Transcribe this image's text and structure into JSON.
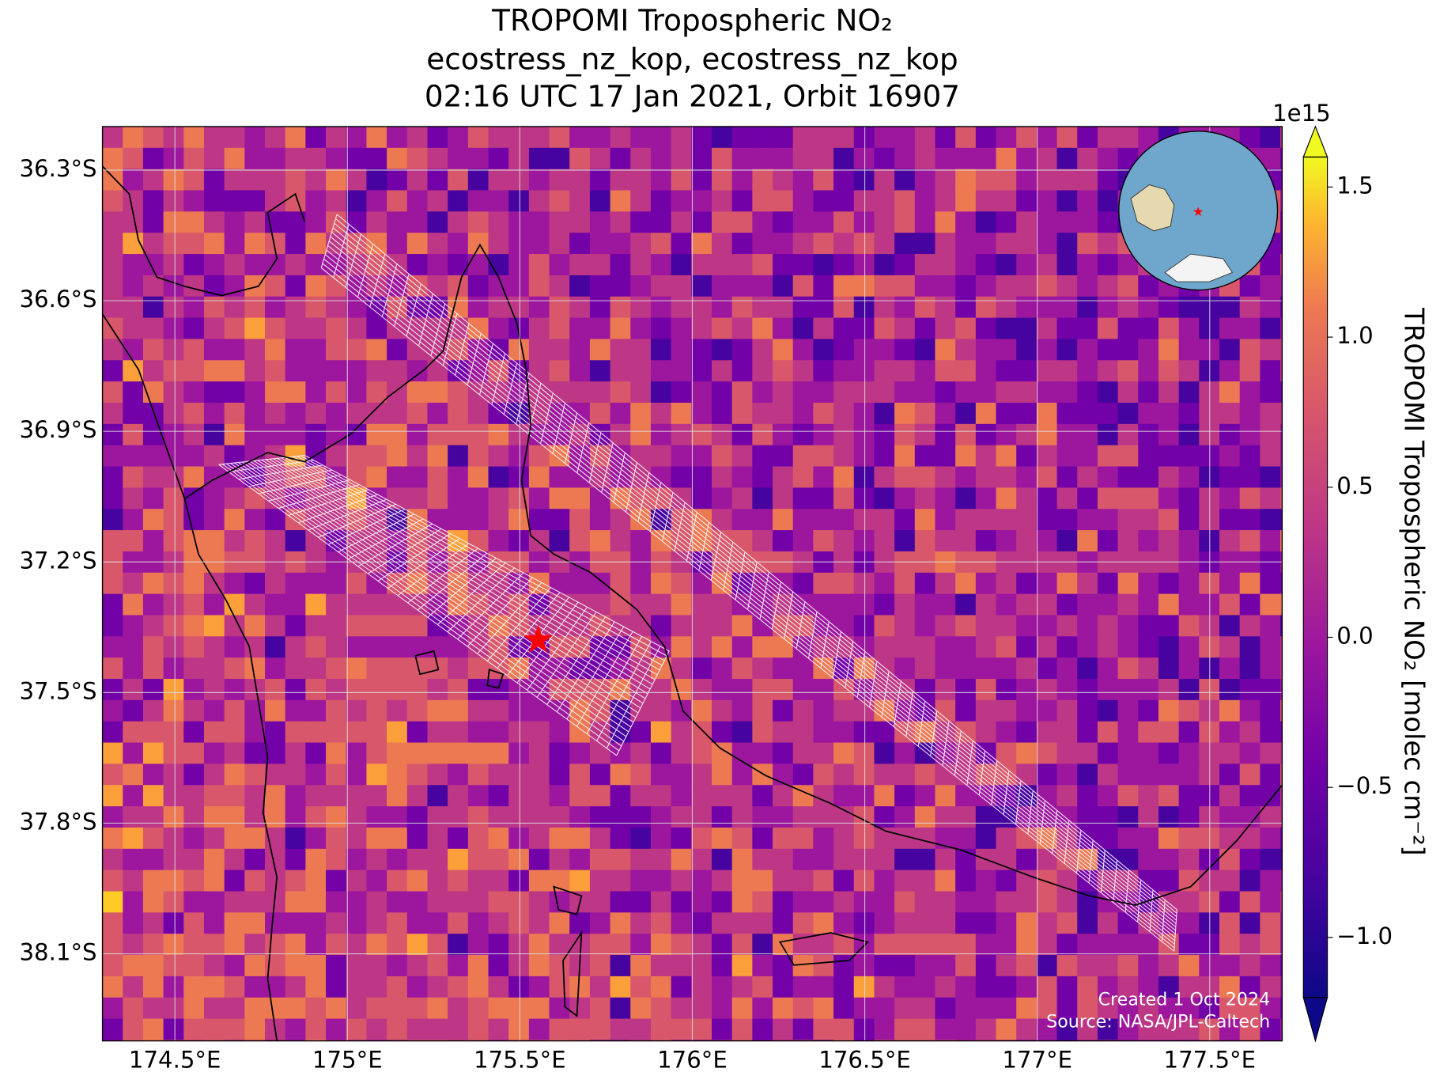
{
  "chart_data": {
    "type": "map",
    "title": [
      "TROPOMI Tropospheric NO₂",
      "ecostress_nz_kop, ecostress_nz_kop",
      "02:16 UTC 17 Jan 2021, Orbit 16907"
    ],
    "xlim": [
      174.29,
      177.71
    ],
    "xticks": [
      {
        "value": 174.5,
        "label": "174.5°E"
      },
      {
        "value": 175,
        "label": "175°E"
      },
      {
        "value": 175.5,
        "label": "175.5°E"
      },
      {
        "value": 176,
        "label": "176°E"
      },
      {
        "value": 176.5,
        "label": "176.5°E"
      },
      {
        "value": 177,
        "label": "177°E"
      },
      {
        "value": 177.5,
        "label": "177.5°E"
      }
    ],
    "ylim": [
      -38.3,
      -36.2
    ],
    "yticks": [
      {
        "value": -36.3,
        "label": "36.3°S"
      },
      {
        "value": -36.6,
        "label": "36.6°S"
      },
      {
        "value": -36.9,
        "label": "36.9°S"
      },
      {
        "value": -37.2,
        "label": "37.2°S"
      },
      {
        "value": -37.5,
        "label": "37.5°S"
      },
      {
        "value": -37.8,
        "label": "37.8°S"
      },
      {
        "value": -38.1,
        "label": "38.1°S"
      }
    ],
    "grid": true,
    "colorbar": {
      "label": "TROPOMI Tropospheric NO₂ [molec cm⁻²]",
      "offset_label": "1e15",
      "lim": [
        -1.2,
        1.6
      ],
      "ticks": [
        {
          "value": -1,
          "label": "−1.0"
        },
        {
          "value": -0.5,
          "label": "−0.5"
        },
        {
          "value": 0,
          "label": "0.0"
        },
        0.5,
        {
          "value": 1,
          "label": "1.0"
        },
        1.5
      ]
    },
    "annotations": [
      "Created 1 Oct 2024",
      "Source: NASA/JPL-Caltech"
    ]
  }
}
